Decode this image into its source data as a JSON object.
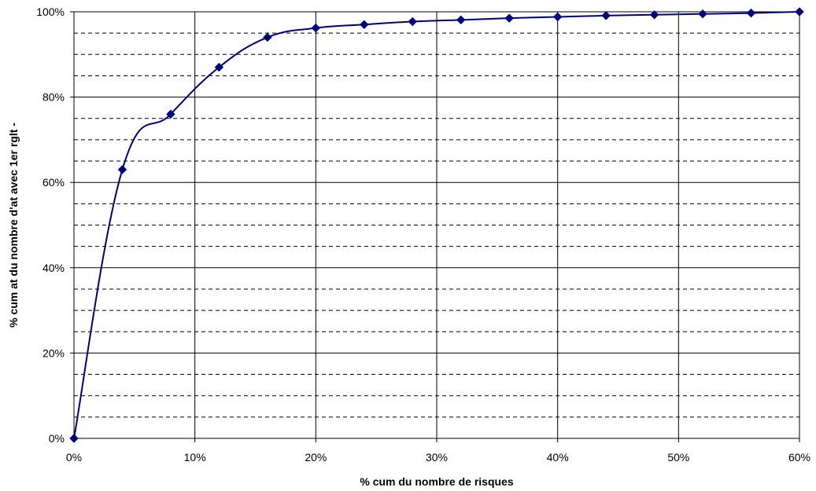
{
  "chart_data": {
    "type": "line",
    "title": "",
    "xlabel": "% cum du nombre de risques",
    "ylabel": "% cum at du nombre d'at avec 1er rglt -",
    "xlim": [
      0,
      60
    ],
    "ylim": [
      0,
      100
    ],
    "x_ticks": [
      0,
      10,
      20,
      30,
      40,
      50,
      60
    ],
    "x_tick_labels": [
      "0%",
      "10%",
      "20%",
      "30%",
      "40%",
      "50%",
      "60%"
    ],
    "y_ticks": [
      0,
      20,
      40,
      60,
      80,
      100
    ],
    "y_tick_labels": [
      "0%",
      "20%",
      "40%",
      "60%",
      "80%",
      "100%"
    ],
    "grid": {
      "major_vertical": true,
      "major_horizontal": true,
      "minor_horizontal_dashed_step": 5
    },
    "legend": "none",
    "series": [
      {
        "color": "#000080",
        "marker": "diamond",
        "smooth": true,
        "x": [
          0,
          4,
          8,
          12,
          16,
          20,
          24,
          28,
          32,
          36,
          40,
          44,
          48,
          52,
          56,
          60
        ],
        "y": [
          0,
          63,
          76,
          87,
          94,
          96.2,
          97,
          97.7,
          98.1,
          98.5,
          98.8,
          99.1,
          99.3,
          99.5,
          99.7,
          100
        ]
      }
    ]
  }
}
